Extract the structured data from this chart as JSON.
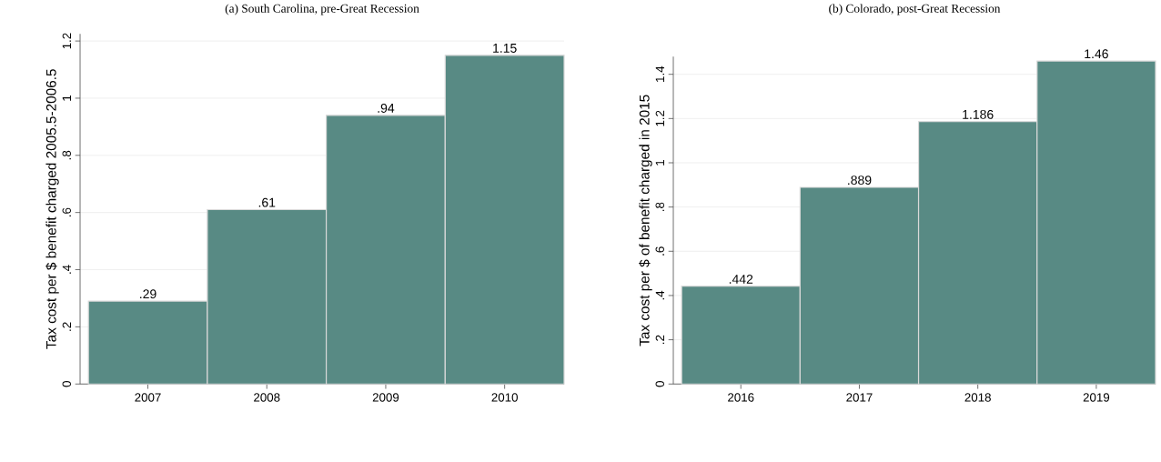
{
  "chart_data": [
    {
      "type": "bar",
      "title": "(a) South Carolina, pre-Great Recession",
      "ylabel": "Tax cost per $ benefit charged 2005.5-2006.5",
      "categories": [
        "2007",
        "2008",
        "2009",
        "2010"
      ],
      "values": [
        0.29,
        0.61,
        0.94,
        1.15
      ],
      "value_labels": [
        ".29",
        ".61",
        ".94",
        "1.15"
      ],
      "color": "#588a84",
      "ylim": [
        0,
        1.225
      ],
      "yticks": [
        0,
        {
          "value": 0.2,
          "label": ".2"
        },
        {
          "value": 0.4,
          "label": ".4"
        },
        {
          "value": 0.6,
          "label": ".6"
        },
        {
          "value": 0.8,
          "label": ".8"
        },
        1,
        1.2
      ],
      "grid": "y"
    },
    {
      "type": "bar",
      "title": "(b) Colorado, post-Great Recession",
      "ylabel": "Tax cost per $ of benefit charged in 2015",
      "categories": [
        "2016",
        "2017",
        "2018",
        "2019"
      ],
      "values": [
        0.442,
        0.889,
        1.186,
        1.46
      ],
      "value_labels": [
        ".442",
        ".889",
        "1.186",
        "1.46"
      ],
      "color": "#588a84",
      "ylim": [
        0,
        1.48
      ],
      "yticks": [
        0,
        {
          "value": 0.2,
          "label": ".2"
        },
        {
          "value": 0.4,
          "label": ".4"
        },
        {
          "value": 0.6,
          "label": ".6"
        },
        {
          "value": 0.8,
          "label": ".8"
        },
        1,
        1.2,
        1.4
      ],
      "grid": "y"
    }
  ]
}
